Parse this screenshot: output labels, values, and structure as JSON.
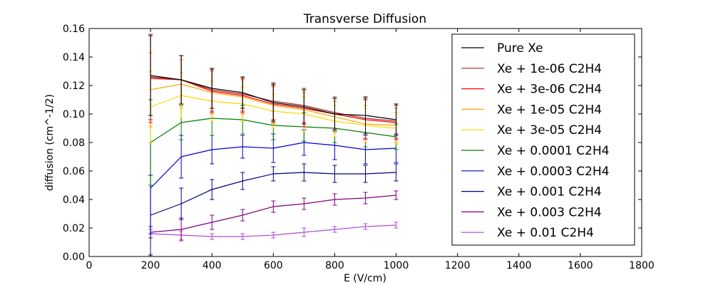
{
  "chart_data": {
    "type": "line",
    "title": "Transverse Diffusion",
    "xlabel": "E (V/cm)",
    "ylabel": "diffusion (cm^-1/2)",
    "xlim": [
      0,
      1800
    ],
    "ylim": [
      0,
      0.16
    ],
    "xticks": [
      0,
      200,
      400,
      600,
      800,
      1000,
      1200,
      1400,
      1600,
      1800
    ],
    "yticks": [
      0.0,
      0.02,
      0.04,
      0.06,
      0.08,
      0.1,
      0.12,
      0.14,
      0.16
    ],
    "xtick_labels": [
      "0",
      "200",
      "400",
      "600",
      "800",
      "1000",
      "1200",
      "1400",
      "1600",
      "1800"
    ],
    "ytick_labels": [
      "0.00",
      "0.02",
      "0.04",
      "0.06",
      "0.08",
      "0.10",
      "0.12",
      "0.14",
      "0.16"
    ],
    "grid": false,
    "legend_position": "top-right",
    "x": [
      200,
      300,
      400,
      500,
      600,
      700,
      800,
      900,
      1000
    ],
    "series": [
      {
        "name": "Pure Xe",
        "color": "#000000",
        "values": [
          0.127,
          0.124,
          0.118,
          0.115,
          0.108,
          0.105,
          0.1,
          0.099,
          0.096
        ],
        "errors": [
          0.028,
          0.017,
          0.014,
          0.011,
          0.013,
          0.012,
          0.011,
          0.013,
          0.011
        ]
      },
      {
        "name": "Xe + 1e-06 C2H4",
        "color": "#a52a2a",
        "values": [
          0.126,
          0.124,
          0.117,
          0.114,
          0.109,
          0.106,
          0.101,
          0.097,
          0.095
        ],
        "errors": [
          0.03,
          0.017,
          0.015,
          0.012,
          0.013,
          0.012,
          0.011,
          0.014,
          0.012
        ]
      },
      {
        "name": "Xe + 3e-06 C2H4",
        "color": "#ff0000",
        "values": [
          0.125,
          0.124,
          0.116,
          0.113,
          0.107,
          0.104,
          0.1,
          0.096,
          0.094
        ],
        "errors": [
          0.031,
          0.017,
          0.015,
          0.012,
          0.013,
          0.013,
          0.011,
          0.014,
          0.012
        ]
      },
      {
        "name": "Xe + 1e-05 C2H4",
        "color": "#ffa500",
        "values": [
          0.117,
          0.121,
          0.115,
          0.112,
          0.106,
          0.103,
          0.098,
          0.093,
          0.092
        ],
        "errors": [
          0.026,
          0.017,
          0.015,
          0.012,
          0.013,
          0.012,
          0.011,
          0.013,
          0.012
        ]
      },
      {
        "name": "Xe + 3e-05 C2H4",
        "color": "#ffd700",
        "values": [
          0.105,
          0.113,
          0.109,
          0.107,
          0.102,
          0.1,
          0.095,
          0.092,
          0.09
        ],
        "errors": [
          0.025,
          0.016,
          0.014,
          0.012,
          0.012,
          0.012,
          0.011,
          0.012,
          0.011
        ]
      },
      {
        "name": "Xe + 0.0001 C2H4",
        "color": "#008000",
        "values": [
          0.08,
          0.094,
          0.097,
          0.096,
          0.092,
          0.091,
          0.09,
          0.087,
          0.084
        ],
        "errors": [
          0.03,
          0.012,
          0.012,
          0.01,
          0.01,
          0.01,
          0.01,
          0.01,
          0.009
        ]
      },
      {
        "name": "Xe + 0.0003 C2H4",
        "color": "#0000cd",
        "values": [
          0.048,
          0.07,
          0.075,
          0.077,
          0.076,
          0.08,
          0.078,
          0.075,
          0.076
        ],
        "errors": [
          0.032,
          0.015,
          0.01,
          0.008,
          0.01,
          0.009,
          0.01,
          0.01,
          0.01
        ]
      },
      {
        "name": "Xe + 0.001 C2H4",
        "color": "#000080",
        "values": [
          0.029,
          0.037,
          0.047,
          0.053,
          0.058,
          0.059,
          0.058,
          0.058,
          0.059
        ],
        "errors": [
          0.028,
          0.011,
          0.007,
          0.006,
          0.005,
          0.006,
          0.006,
          0.006,
          0.006
        ]
      },
      {
        "name": "Xe + 0.003 C2H4",
        "color": "#800080",
        "values": [
          0.017,
          0.019,
          0.024,
          0.029,
          0.035,
          0.037,
          0.04,
          0.041,
          0.043
        ],
        "errors": [
          0.004,
          0.008,
          0.005,
          0.004,
          0.004,
          0.004,
          0.004,
          0.004,
          0.003
        ]
      },
      {
        "name": "Xe + 0.01 C2H4",
        "color": "#b04ad6",
        "values": [
          0.016,
          0.015,
          0.014,
          0.014,
          0.015,
          0.017,
          0.019,
          0.021,
          0.022
        ],
        "errors": [
          0.003,
          0.003,
          0.002,
          0.002,
          0.002,
          0.003,
          0.002,
          0.002,
          0.002
        ]
      }
    ]
  }
}
